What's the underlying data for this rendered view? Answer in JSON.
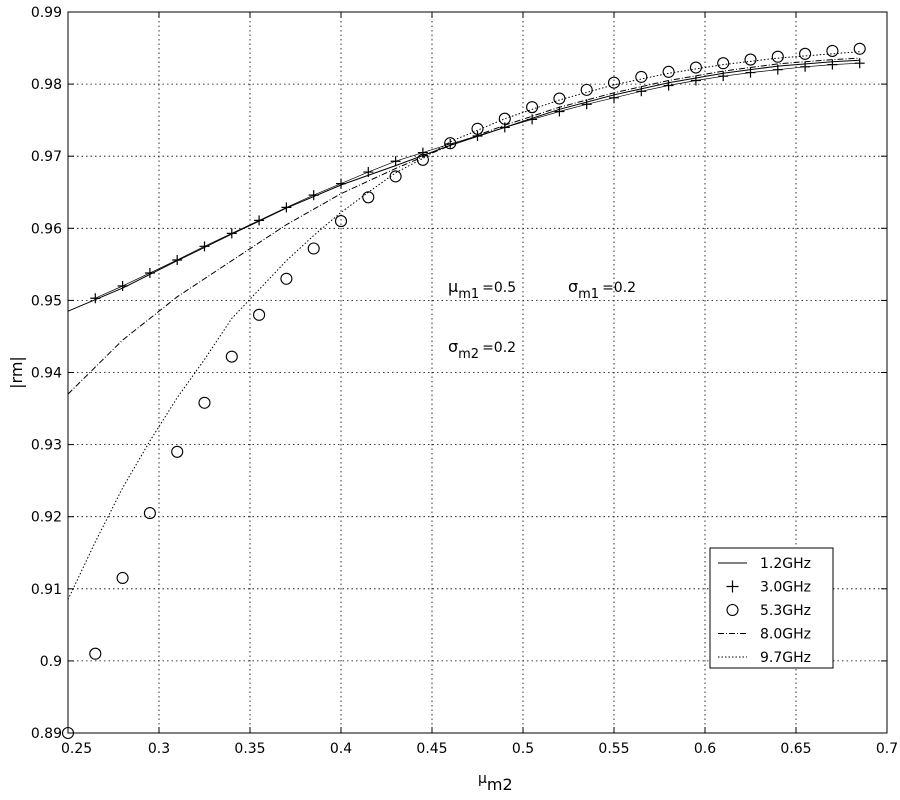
{
  "chart_data": {
    "type": "line",
    "xlabel": "μ",
    "xlabel_sub": "m2",
    "ylabel": "|rm|",
    "xlim": [
      0.25,
      0.7
    ],
    "ylim": [
      0.89,
      0.99
    ],
    "xticks": [
      "0.25",
      "0.3",
      "0.35",
      "0.4",
      "0.45",
      "0.5",
      "0.55",
      "0.6",
      "0.65",
      "0.7"
    ],
    "yticks": [
      "0.89",
      "0.9",
      "0.91",
      "0.92",
      "0.93",
      "0.94",
      "0.95",
      "0.96",
      "0.97",
      "0.98",
      "0.99"
    ],
    "grid": true,
    "legend_position": "lower-right",
    "annotations": [
      {
        "sym": "μ",
        "sub": "m1",
        "value": "=0.5"
      },
      {
        "sym": "σ",
        "sub": "m1",
        "value": "=0.2"
      },
      {
        "sym": "σ",
        "sub": "m2",
        "value": "=0.2"
      }
    ],
    "series": [
      {
        "name": "1.2GHz",
        "style": "solid",
        "x": [
          0.25,
          0.28,
          0.31,
          0.34,
          0.37,
          0.4,
          0.43,
          0.46,
          0.49,
          0.52,
          0.55,
          0.58,
          0.61,
          0.64,
          0.67,
          0.685
        ],
        "y": [
          0.9485,
          0.9517,
          0.9555,
          0.9592,
          0.9628,
          0.966,
          0.9687,
          0.9715,
          0.974,
          0.9765,
          0.9785,
          0.9802,
          0.9815,
          0.9825,
          0.9831,
          0.9833
        ]
      },
      {
        "name": "3.0GHz",
        "style": "plus",
        "x": [
          0.265,
          0.28,
          0.295,
          0.31,
          0.325,
          0.34,
          0.355,
          0.37,
          0.385,
          0.4,
          0.415,
          0.43,
          0.445,
          0.46,
          0.475,
          0.49,
          0.505,
          0.52,
          0.535,
          0.55,
          0.565,
          0.58,
          0.595,
          0.61,
          0.625,
          0.64,
          0.655,
          0.67,
          0.685
        ],
        "y": [
          0.9503,
          0.952,
          0.9538,
          0.9556,
          0.9575,
          0.9593,
          0.9611,
          0.9629,
          0.9646,
          0.9662,
          0.9678,
          0.9693,
          0.9705,
          0.9717,
          0.9728,
          0.974,
          0.9751,
          0.9762,
          0.9772,
          0.9781,
          0.979,
          0.9798,
          0.9805,
          0.9811,
          0.9816,
          0.982,
          0.9824,
          0.9827,
          0.9829
        ]
      },
      {
        "name": "5.3GHz",
        "style": "circle",
        "x": [
          0.25,
          0.265,
          0.28,
          0.295,
          0.31,
          0.325,
          0.34,
          0.355,
          0.37,
          0.385,
          0.4,
          0.415,
          0.43,
          0.445,
          0.46,
          0.475,
          0.49,
          0.505,
          0.52,
          0.535,
          0.55,
          0.565,
          0.58,
          0.595,
          0.61,
          0.625,
          0.64,
          0.655,
          0.67,
          0.685
        ],
        "y": [
          0.89,
          0.901,
          0.9115,
          0.9205,
          0.929,
          0.9358,
          0.9422,
          0.948,
          0.953,
          0.9572,
          0.961,
          0.9643,
          0.9672,
          0.9695,
          0.9718,
          0.9738,
          0.9752,
          0.9768,
          0.978,
          0.9792,
          0.9802,
          0.981,
          0.9817,
          0.9823,
          0.9829,
          0.9834,
          0.9838,
          0.9842,
          0.9846,
          0.9849
        ]
      },
      {
        "name": "8.0GHz",
        "style": "dashdot",
        "x": [
          0.25,
          0.28,
          0.31,
          0.34,
          0.37,
          0.4,
          0.43,
          0.46,
          0.49,
          0.52,
          0.55,
          0.58,
          0.61,
          0.64,
          0.67,
          0.685
        ],
        "y": [
          0.937,
          0.9445,
          0.9505,
          0.9555,
          0.9605,
          0.9648,
          0.9683,
          0.9715,
          0.9743,
          0.9768,
          0.9788,
          0.9805,
          0.9818,
          0.9828,
          0.9834,
          0.9836
        ]
      },
      {
        "name": "9.7GHz",
        "style": "dotted",
        "x": [
          0.25,
          0.265,
          0.28,
          0.295,
          0.31,
          0.325,
          0.34,
          0.355,
          0.37,
          0.385,
          0.4,
          0.415,
          0.43,
          0.445,
          0.46,
          0.49,
          0.52,
          0.55,
          0.58,
          0.61,
          0.64,
          0.67,
          0.685
        ],
        "y": [
          0.9085,
          0.9165,
          0.924,
          0.9305,
          0.9365,
          0.9418,
          0.9475,
          0.9515,
          0.9555,
          0.959,
          0.9622,
          0.965,
          0.9677,
          0.9697,
          0.972,
          0.9752,
          0.9778,
          0.9799,
          0.9815,
          0.9827,
          0.9836,
          0.9842,
          0.9845
        ]
      }
    ]
  }
}
